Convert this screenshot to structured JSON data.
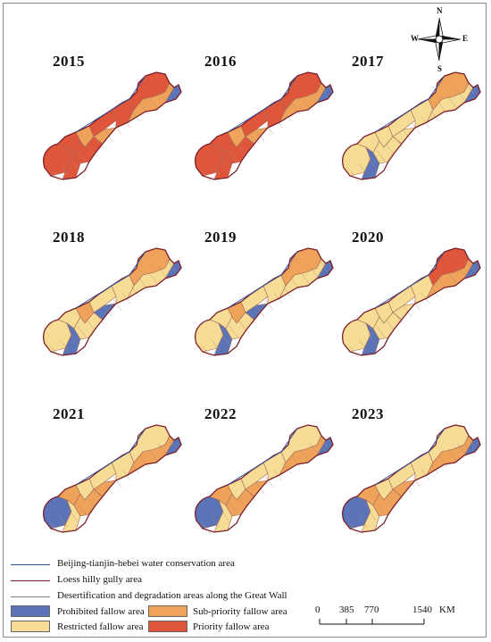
{
  "panels": [
    {
      "year": "2015",
      "scheme": "A"
    },
    {
      "year": "2016",
      "scheme": "A"
    },
    {
      "year": "2017",
      "scheme": "B"
    },
    {
      "year": "2018",
      "scheme": "C"
    },
    {
      "year": "2019",
      "scheme": "C"
    },
    {
      "year": "2020",
      "scheme": "D"
    },
    {
      "year": "2021",
      "scheme": "E"
    },
    {
      "year": "2022",
      "scheme": "E"
    },
    {
      "year": "2023",
      "scheme": "E"
    }
  ],
  "compass": {
    "n": "N",
    "s": "S",
    "e": "E",
    "w": "W"
  },
  "legend": {
    "lines": [
      {
        "label": "Beijing-tianjin-hebei water conservation area",
        "color": "#2f4f9a"
      },
      {
        "label": "Loess hilly gully area",
        "color": "#7a1e2a"
      },
      {
        "label": "Desertification and degradation areas along the Great Wall",
        "color": "#7d7d7d"
      }
    ],
    "fills": [
      {
        "label": "Prohibited fallow area",
        "color": "#5b74b8"
      },
      {
        "label": "Sub-priority fallow area",
        "color": "#efa25a"
      },
      {
        "label": "Restricted fallow area",
        "color": "#f6dc94"
      },
      {
        "label": "Priority fallow area",
        "color": "#e0563a"
      }
    ]
  },
  "scale": {
    "ticks": [
      "0",
      "385",
      "770",
      "1540"
    ],
    "unit": "KM"
  }
}
